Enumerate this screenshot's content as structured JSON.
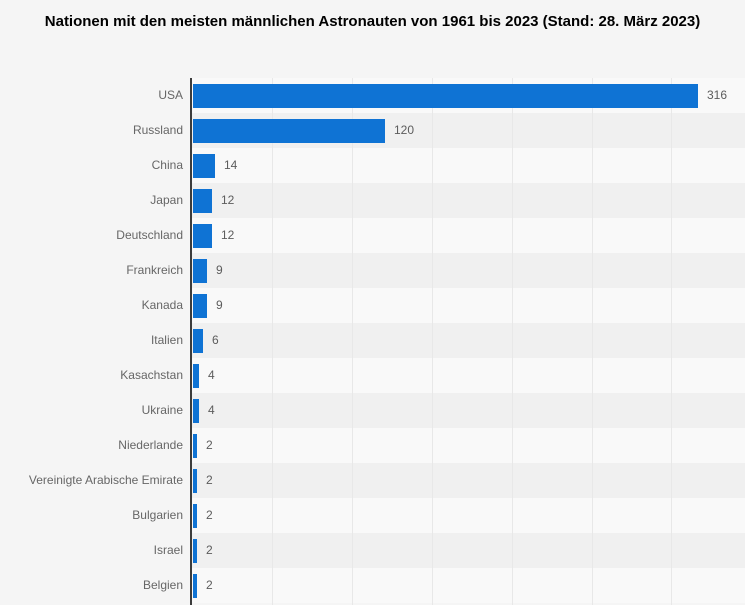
{
  "chart_data": {
    "type": "bar",
    "orientation": "horizontal",
    "title": "Nationen mit den meisten männlichen Astronauten von 1961 bis 2023 (Stand: 28. März 2023)",
    "categories": [
      "USA",
      "Russland",
      "China",
      "Japan",
      "Deutschland",
      "Frankreich",
      "Kanada",
      "Italien",
      "Kasachstan",
      "Ukraine",
      "Niederlande",
      "Vereinigte Arabische Emirate",
      "Bulgarien",
      "Israel",
      "Belgien"
    ],
    "values": [
      316,
      120,
      14,
      12,
      12,
      9,
      9,
      6,
      4,
      4,
      2,
      2,
      2,
      2,
      2
    ],
    "xlabel": "",
    "ylabel": "",
    "xlim": [
      0,
      346
    ],
    "gridline_values": [
      50,
      100,
      150,
      200,
      250,
      300
    ],
    "grid": "vertical-faint",
    "row_striping": true,
    "value_labels_shown": true,
    "legend": "none"
  },
  "colors": {
    "bar": "#0f73d4",
    "page_bg": "#f5f5f5",
    "band_light": "#f9f9f9",
    "band_dark": "#f0f0f0",
    "gridline": "#e8e8e8",
    "axis_line": "#3c3c3c",
    "category_label": "#666666",
    "value_label": "#5c5c5c",
    "title": "#000000"
  }
}
